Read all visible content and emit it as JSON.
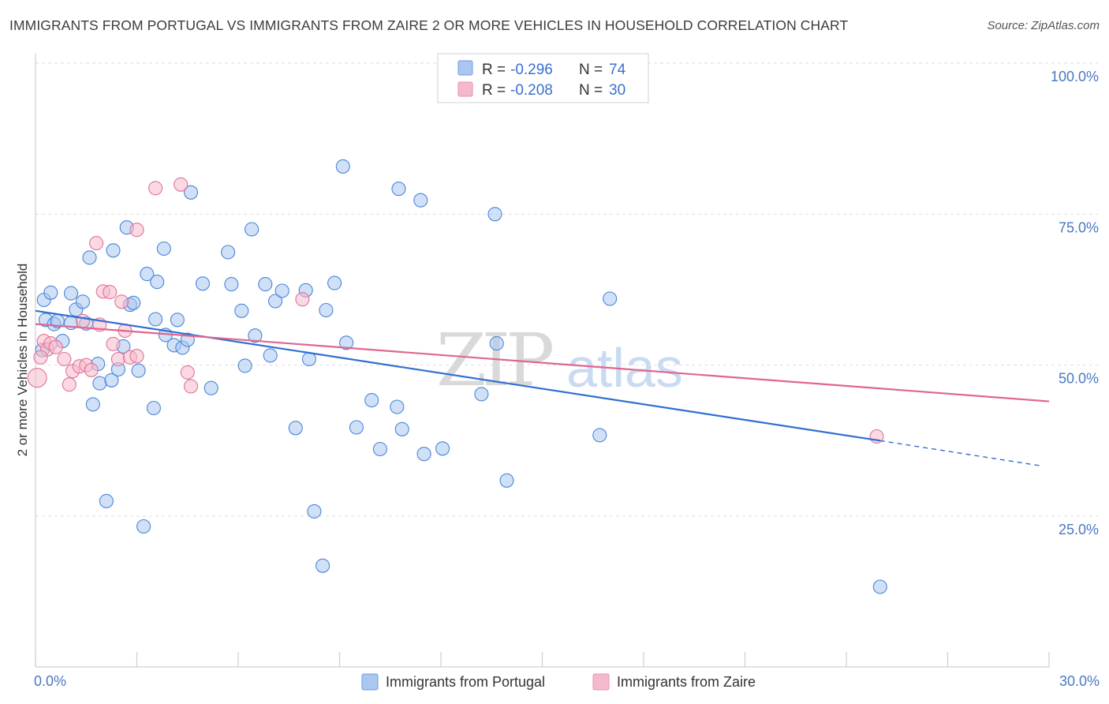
{
  "header": {
    "title": "IMMIGRANTS FROM PORTUGAL VS IMMIGRANTS FROM ZAIRE 2 OR MORE VEHICLES IN HOUSEHOLD CORRELATION CHART",
    "source": "Source: ZipAtlas.com"
  },
  "watermark": {
    "zip": "ZIP",
    "atlas": "atlas"
  },
  "legend": {
    "rows": [
      {
        "r_label": "R =",
        "r_value": "-0.296",
        "n_label": "N =",
        "n_value": "74",
        "color": "#a9c7f0"
      },
      {
        "r_label": "R =",
        "r_value": "-0.208",
        "n_label": "N =",
        "n_value": "30",
        "color": "#f5b9cc"
      }
    ]
  },
  "chart_data": {
    "type": "scatter",
    "title": "IMMIGRANTS FROM PORTUGAL VS IMMIGRANTS FROM ZAIRE 2 OR MORE VEHICLES IN HOUSEHOLD CORRELATION CHART",
    "xlabel": "",
    "ylabel": "2 or more Vehicles in Household",
    "xlim": [
      0,
      30
    ],
    "ylim": [
      0,
      105
    ],
    "x_tick_labels": [
      "0.0%",
      "30.0%"
    ],
    "y_tick_labels": [
      "25.0%",
      "50.0%",
      "75.0%",
      "100.0%"
    ],
    "y_ticks": [
      25,
      50,
      75,
      100
    ],
    "series": [
      {
        "name": "Immigrants from Portugal",
        "color": "#4a86d8",
        "fill": "#a9c7f0",
        "trend": {
          "x": [
            0,
            25
          ],
          "y": [
            59.0,
            37.5
          ],
          "dashed_to": {
            "x": 29.8,
            "y": 33.3
          },
          "color": "#2f6fd1"
        },
        "points": [
          [
            0.2,
            52.5
          ],
          [
            0.25,
            60.8
          ],
          [
            0.3,
            57.5
          ],
          [
            0.45,
            62.0
          ],
          [
            0.55,
            56.8
          ],
          [
            0.65,
            57.3
          ],
          [
            0.8,
            54.0
          ],
          [
            1.05,
            61.9
          ],
          [
            1.05,
            57.0
          ],
          [
            1.2,
            59.2
          ],
          [
            1.4,
            60.5
          ],
          [
            1.5,
            56.9
          ],
          [
            1.6,
            67.8
          ],
          [
            1.7,
            43.5
          ],
          [
            1.85,
            50.2
          ],
          [
            1.9,
            47.0
          ],
          [
            2.1,
            27.5
          ],
          [
            2.25,
            47.5
          ],
          [
            2.3,
            69.0
          ],
          [
            2.45,
            49.3
          ],
          [
            2.6,
            53.1
          ],
          [
            2.7,
            72.8
          ],
          [
            2.8,
            60.0
          ],
          [
            2.9,
            60.3
          ],
          [
            3.05,
            49.1
          ],
          [
            3.2,
            23.3
          ],
          [
            3.3,
            65.1
          ],
          [
            3.5,
            42.9
          ],
          [
            3.55,
            57.6
          ],
          [
            3.6,
            63.8
          ],
          [
            3.8,
            69.3
          ],
          [
            3.85,
            55.0
          ],
          [
            4.1,
            53.3
          ],
          [
            4.2,
            57.5
          ],
          [
            4.35,
            52.9
          ],
          [
            4.5,
            54.2
          ],
          [
            4.6,
            78.6
          ],
          [
            4.95,
            63.5
          ],
          [
            5.2,
            46.2
          ],
          [
            5.7,
            68.7
          ],
          [
            5.8,
            63.4
          ],
          [
            6.1,
            59.0
          ],
          [
            6.2,
            49.9
          ],
          [
            6.4,
            72.5
          ],
          [
            6.5,
            54.9
          ],
          [
            6.8,
            63.4
          ],
          [
            6.95,
            51.6
          ],
          [
            7.1,
            60.6
          ],
          [
            7.3,
            62.3
          ],
          [
            7.7,
            39.6
          ],
          [
            8.0,
            62.4
          ],
          [
            8.1,
            51.0
          ],
          [
            8.25,
            25.8
          ],
          [
            8.5,
            16.8
          ],
          [
            8.6,
            59.1
          ],
          [
            8.85,
            63.6
          ],
          [
            9.1,
            82.9
          ],
          [
            9.2,
            53.7
          ],
          [
            9.5,
            39.7
          ],
          [
            9.95,
            44.2
          ],
          [
            10.2,
            36.1
          ],
          [
            10.7,
            43.1
          ],
          [
            10.75,
            79.2
          ],
          [
            10.85,
            39.4
          ],
          [
            11.4,
            77.3
          ],
          [
            11.5,
            35.3
          ],
          [
            12.05,
            36.2
          ],
          [
            13.2,
            45.2
          ],
          [
            13.6,
            75.0
          ],
          [
            13.65,
            53.6
          ],
          [
            13.95,
            30.9
          ],
          [
            16.7,
            38.4
          ],
          [
            17.0,
            61.0
          ],
          [
            25.0,
            13.3
          ]
        ]
      },
      {
        "name": "Immigrants from Zaire",
        "color": "#e07498",
        "fill": "#f5b9cc",
        "trend": {
          "x": [
            0,
            30
          ],
          "y": [
            56.8,
            44.0
          ],
          "color": "#e0668f"
        },
        "points": [
          [
            0.05,
            47.9
          ],
          [
            0.25,
            54.0
          ],
          [
            0.35,
            52.6
          ],
          [
            0.45,
            53.6
          ],
          [
            0.6,
            53.0
          ],
          [
            0.85,
            51.0
          ],
          [
            1.0,
            46.8
          ],
          [
            1.1,
            49.0
          ],
          [
            1.3,
            49.8
          ],
          [
            1.4,
            57.3
          ],
          [
            1.5,
            50.0
          ],
          [
            1.65,
            49.2
          ],
          [
            1.8,
            70.2
          ],
          [
            1.9,
            56.7
          ],
          [
            2.0,
            62.2
          ],
          [
            2.2,
            62.1
          ],
          [
            2.3,
            53.5
          ],
          [
            2.45,
            51.0
          ],
          [
            2.55,
            60.5
          ],
          [
            2.65,
            55.7
          ],
          [
            2.8,
            51.3
          ],
          [
            3.0,
            51.5
          ],
          [
            3.0,
            72.4
          ],
          [
            3.55,
            79.3
          ],
          [
            4.3,
            79.9
          ],
          [
            4.5,
            48.8
          ],
          [
            4.6,
            46.5
          ],
          [
            7.9,
            60.9
          ],
          [
            24.9,
            38.2
          ],
          [
            0.15,
            51.3
          ]
        ]
      }
    ]
  }
}
